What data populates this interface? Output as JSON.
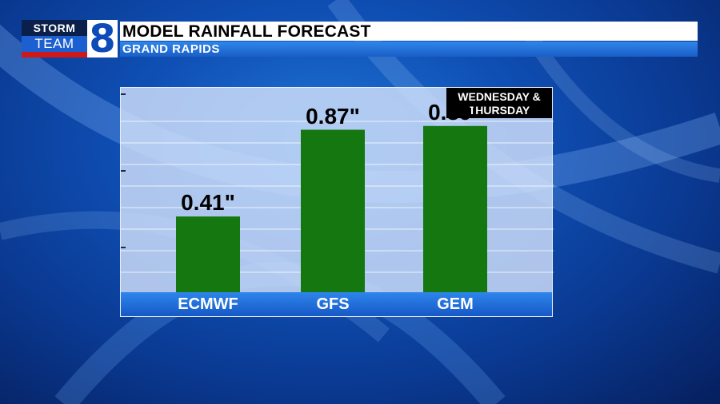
{
  "logo": {
    "top": "STORM",
    "bottom": "TEAM",
    "number": "8"
  },
  "header": {
    "title": "MODEL RAINFALL FORECAST",
    "subtitle": "GRAND RAPIDS"
  },
  "badge": {
    "line1": "WEDNESDAY &",
    "line2": "THURSDAY"
  },
  "colors": {
    "bar": "#15770f",
    "accent": "#1b5fd1",
    "logo_red": "#d01818"
  },
  "chart_data": {
    "type": "bar",
    "categories": [
      "ECMWF",
      "GFS",
      "GEM"
    ],
    "values": [
      0.41,
      0.87,
      0.89
    ],
    "value_labels": [
      "0.41\"",
      "0.87\"",
      "0.89\""
    ],
    "title": "MODEL RAINFALL FORECAST",
    "subtitle": "GRAND RAPIDS",
    "ylim": [
      0,
      1.05
    ],
    "grid": true,
    "legend": "none"
  }
}
